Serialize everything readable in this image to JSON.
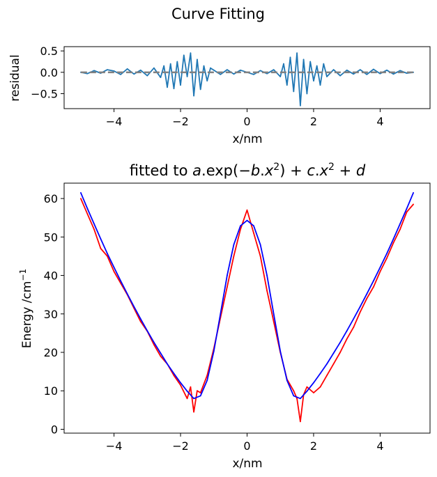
{
  "page_title": "Curve Fitting",
  "chart_data": [
    {
      "type": "line",
      "panel": "residual",
      "title": "",
      "xlabel": "x/nm",
      "ylabel": "residual",
      "xlim": [
        -5.5,
        5.5
      ],
      "ylim": [
        -0.85,
        0.6
      ],
      "xticks": [
        -4,
        -2,
        0,
        2,
        4
      ],
      "xtick_labels": [
        "−4",
        "−2",
        "0",
        "2",
        "4"
      ],
      "yticks": [
        0.5,
        0.0,
        -0.5
      ],
      "ytick_labels": [
        "0.5",
        "0.0",
        "−0.5"
      ],
      "grid": false,
      "series": [
        {
          "name": "",
          "color": "#1f77b4",
          "x": [
            -5.0,
            -4.8,
            -4.6,
            -4.4,
            -4.2,
            -4.0,
            -3.8,
            -3.6,
            -3.4,
            -3.2,
            -3.0,
            -2.8,
            -2.6,
            -2.5,
            -2.4,
            -2.3,
            -2.2,
            -2.1,
            -2.0,
            -1.9,
            -1.8,
            -1.7,
            -1.6,
            -1.5,
            -1.4,
            -1.3,
            -1.2,
            -1.1,
            -1.0,
            -0.8,
            -0.6,
            -0.4,
            -0.2,
            0.0,
            0.2,
            0.4,
            0.6,
            0.8,
            1.0,
            1.1,
            1.2,
            1.3,
            1.4,
            1.5,
            1.6,
            1.7,
            1.8,
            1.9,
            2.0,
            2.1,
            2.2,
            2.3,
            2.4,
            2.6,
            2.8,
            3.0,
            3.2,
            3.4,
            3.6,
            3.8,
            4.0,
            4.2,
            4.4,
            4.6,
            4.8,
            5.0
          ],
          "y": [
            0.0,
            -0.03,
            0.04,
            -0.02,
            0.06,
            0.03,
            -0.05,
            0.08,
            -0.04,
            0.05,
            -0.08,
            0.1,
            -0.12,
            0.15,
            -0.35,
            0.2,
            -0.38,
            0.25,
            -0.3,
            0.4,
            -0.1,
            0.45,
            -0.55,
            0.3,
            -0.4,
            0.15,
            -0.2,
            0.1,
            0.05,
            -0.05,
            0.06,
            -0.04,
            0.05,
            0.0,
            -0.05,
            0.04,
            -0.03,
            0.06,
            -0.1,
            0.2,
            -0.3,
            0.35,
            -0.45,
            0.45,
            -0.78,
            0.3,
            -0.5,
            0.25,
            -0.2,
            0.15,
            -0.3,
            0.2,
            -0.1,
            0.06,
            -0.08,
            0.05,
            -0.04,
            0.06,
            -0.05,
            0.07,
            -0.03,
            0.05,
            -0.04,
            0.04,
            -0.02,
            0.0
          ]
        }
      ],
      "reference_line": {
        "y": 0.0,
        "color": "#808080",
        "style": "dashed"
      }
    },
    {
      "type": "line",
      "panel": "fit",
      "title": "fitted to a.exp(−b.x²) + c.x² + d",
      "title_parts": [
        "fitted to ",
        "a",
        ".",
        "exp",
        "(−",
        "b",
        ".",
        "x",
        "2",
        ") + ",
        "c",
        ".",
        "x",
        "2",
        " + ",
        "d"
      ],
      "xlabel": "x/nm",
      "ylabel": "Energy /cm",
      "ylabel_superscript": "−1",
      "xlim": [
        -5.5,
        5.5
      ],
      "ylim": [
        -1,
        64
      ],
      "xticks": [
        -4,
        -2,
        0,
        2,
        4
      ],
      "xtick_labels": [
        "−4",
        "−2",
        "0",
        "2",
        "4"
      ],
      "yticks": [
        0,
        10,
        20,
        30,
        40,
        50,
        60
      ],
      "ytick_labels": [
        "0",
        "10",
        "20",
        "30",
        "40",
        "50",
        "60"
      ],
      "grid": false,
      "series": [
        {
          "name": "",
          "color": "#ff0000",
          "x": [
            -5.0,
            -4.8,
            -4.6,
            -4.4,
            -4.2,
            -4.0,
            -3.8,
            -3.6,
            -3.4,
            -3.2,
            -3.0,
            -2.8,
            -2.6,
            -2.4,
            -2.2,
            -2.0,
            -1.8,
            -1.7,
            -1.6,
            -1.5,
            -1.4,
            -1.2,
            -1.0,
            -0.8,
            -0.6,
            -0.4,
            -0.2,
            0.0,
            0.2,
            0.4,
            0.6,
            0.8,
            1.0,
            1.2,
            1.4,
            1.5,
            1.6,
            1.7,
            1.8,
            2.0,
            2.2,
            2.4,
            2.6,
            2.8,
            3.0,
            3.2,
            3.4,
            3.6,
            3.8,
            4.0,
            4.2,
            4.4,
            4.6,
            4.8,
            5.0
          ],
          "y": [
            60.0,
            56.0,
            52.0,
            47.0,
            45.0,
            41.0,
            38.0,
            35.0,
            31.5,
            28.0,
            25.5,
            22.0,
            19.0,
            17.0,
            14.0,
            11.5,
            8.0,
            11.0,
            4.5,
            10.0,
            9.5,
            14.0,
            21.0,
            29.0,
            37.0,
            45.0,
            52.0,
            57.0,
            51.0,
            45.0,
            36.0,
            28.0,
            20.0,
            13.0,
            10.0,
            8.0,
            2.0,
            9.0,
            11.0,
            9.5,
            11.0,
            14.0,
            17.0,
            20.0,
            23.5,
            26.5,
            30.5,
            34.0,
            37.0,
            41.0,
            44.5,
            48.5,
            52.0,
            56.5,
            58.5
          ]
        },
        {
          "name": "",
          "color": "#0000ff",
          "x": [
            -5.0,
            -4.8,
            -4.6,
            -4.4,
            -4.2,
            -4.0,
            -3.8,
            -3.6,
            -3.4,
            -3.2,
            -3.0,
            -2.8,
            -2.6,
            -2.4,
            -2.2,
            -2.0,
            -1.8,
            -1.6,
            -1.4,
            -1.2,
            -1.0,
            -0.8,
            -0.6,
            -0.4,
            -0.2,
            0.0,
            0.2,
            0.4,
            0.6,
            0.8,
            1.0,
            1.2,
            1.4,
            1.6,
            1.8,
            2.0,
            2.2,
            2.4,
            2.6,
            2.8,
            3.0,
            3.2,
            3.4,
            3.6,
            3.8,
            4.0,
            4.2,
            4.4,
            4.6,
            4.8,
            5.0
          ],
          "y": [
            61.5,
            57.4,
            53.4,
            49.5,
            45.7,
            42.1,
            38.6,
            35.2,
            31.9,
            28.7,
            25.6,
            22.6,
            19.8,
            17.0,
            14.5,
            12.1,
            9.9,
            8.0,
            8.7,
            12.7,
            20.3,
            30.0,
            40.0,
            48.0,
            52.9,
            54.3,
            52.9,
            48.0,
            40.0,
            30.0,
            20.3,
            12.7,
            8.7,
            8.0,
            9.9,
            12.1,
            14.5,
            17.0,
            19.8,
            22.6,
            25.6,
            28.7,
            31.9,
            35.2,
            38.6,
            42.1,
            45.7,
            49.5,
            53.4,
            57.4,
            61.5
          ]
        }
      ]
    }
  ]
}
